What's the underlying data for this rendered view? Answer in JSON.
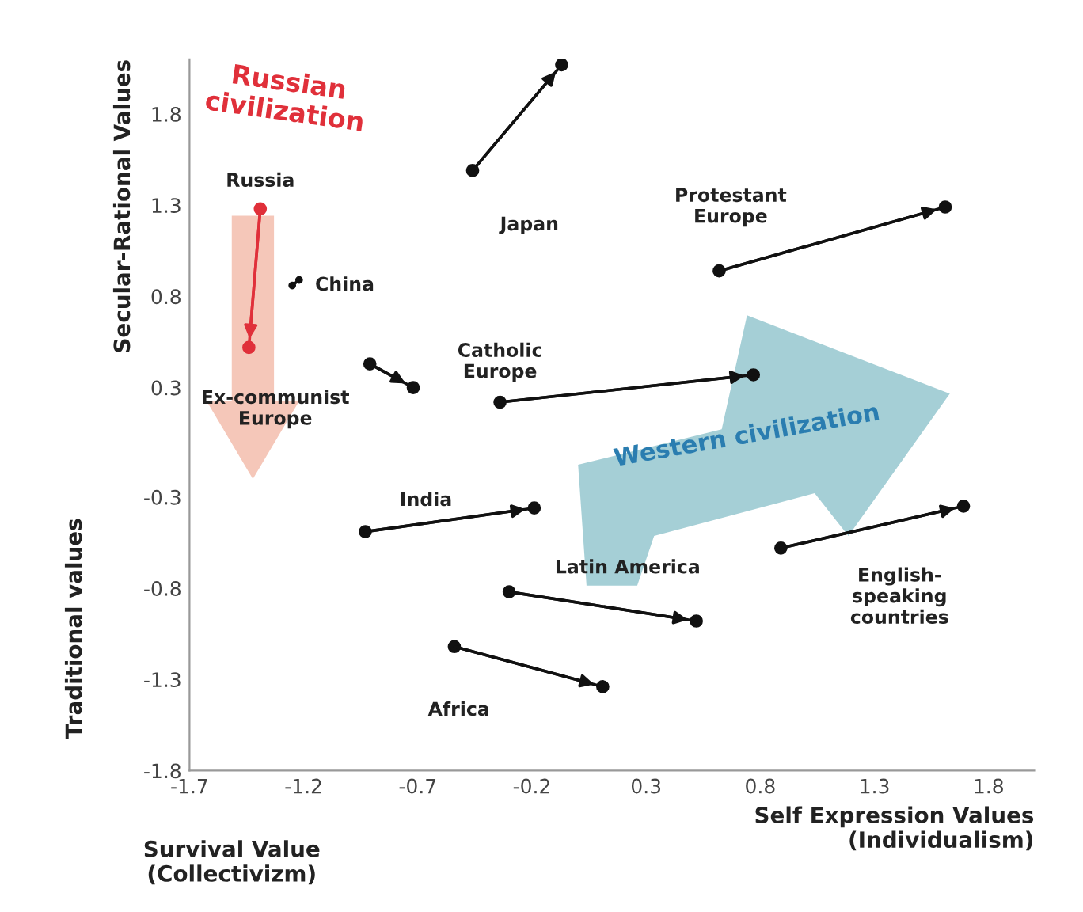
{
  "chart_data": {
    "type": "line",
    "xlabel": "Self Expression Values\n(Individualism)",
    "ylabel": "Secular-Rational Values",
    "annotations": [
      "Russian\ncivilization",
      "Western civilization",
      {
        "text": "Ex-communist\nEurope",
        "x": -1.44,
        "y": 0.52
      },
      "Survival Value\n(Collectivizm)",
      "Traditional values"
    ],
    "xlim": [
      -1.7,
      2.0
    ],
    "ylim": [
      -1.8,
      2.1
    ],
    "xticks": [
      -1.7,
      -1.2,
      -0.7,
      -0.2,
      0.3,
      0.8,
      1.3,
      1.8
    ],
    "yticks": [
      -1.8,
      -1.3,
      -0.8,
      -0.3,
      0.3,
      0.8,
      1.3,
      1.8
    ],
    "marker": "circle",
    "grid": false,
    "series": [
      {
        "name": "Japan",
        "color": "#111111",
        "x": [
          -0.46,
          -0.07
        ],
        "values": [
          1.49,
          2.07
        ]
      },
      {
        "name": "Russia",
        "color": "#e0303a",
        "x": [
          -1.39,
          -1.44
        ],
        "values": [
          1.28,
          0.52
        ]
      },
      {
        "name": "China",
        "color": "#111111",
        "x": [
          -1.25,
          -1.22
        ],
        "values": [
          0.86,
          0.89
        ]
      },
      {
        "color": "#111111",
        "x": [
          -0.91,
          -0.72
        ],
        "values": [
          0.43,
          0.3
        ]
      },
      {
        "name": "Catholic\nEurope",
        "color": "#111111",
        "x": [
          -0.34,
          0.77
        ],
        "values": [
          0.22,
          0.37
        ]
      },
      {
        "name": "Protestant\nEurope",
        "color": "#111111",
        "x": [
          0.62,
          1.61
        ],
        "values": [
          0.94,
          1.29
        ]
      },
      {
        "name": "India",
        "color": "#111111",
        "x": [
          -0.93,
          -0.19
        ],
        "values": [
          -0.49,
          -0.36
        ]
      },
      {
        "name": "Latin America",
        "color": "#111111",
        "x": [
          -0.3,
          0.52
        ],
        "values": [
          -0.82,
          -0.98
        ]
      },
      {
        "name": "Africa",
        "color": "#111111",
        "x": [
          -0.54,
          0.11
        ],
        "values": [
          -1.12,
          -1.34
        ]
      },
      {
        "name": "English-\nspeaking\ncountries",
        "color": "#111111",
        "x": [
          0.89,
          1.69
        ],
        "values": [
          -0.58,
          -0.35
        ]
      }
    ]
  }
}
